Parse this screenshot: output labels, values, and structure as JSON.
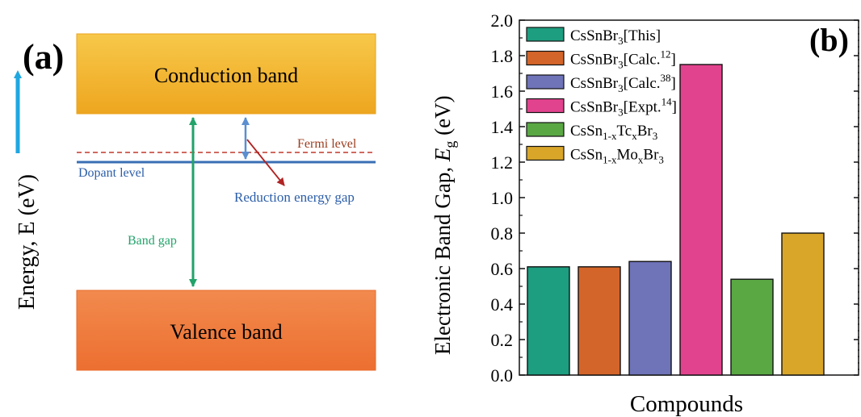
{
  "panel_a": {
    "label": "(a)",
    "conduction_band": "Conduction band",
    "valence_band": "Valence band",
    "fermi_level": "Fermi level",
    "dopant_level": "Dopant level",
    "reduction_gap": "Reduction  energy gap",
    "band_gap": "Band gap",
    "y_axis_label": "Energy, E (eV)",
    "colors": {
      "conduction": "#f2b02a",
      "valence": "#ef7b3f",
      "fermi": "#c0392b",
      "dopant": "#3a6fb5",
      "band_gap_arrow": "#22a36a",
      "reduction_arrow": "#5b8fd0",
      "pointer_arrow": "#b02424",
      "energy_arrow": "#1fa7e0"
    }
  },
  "panel_b": {
    "label": "(b)",
    "chart_data": {
      "type": "bar",
      "categories": [
        "CsSnBr3[This]",
        "CsSnBr3[Calc.12]",
        "CsSnBr3[Calc.38]",
        "CsSnBr3[Expt.14]",
        "CsSn1-xTcxBr3",
        "CsSn1-xMoxBr3"
      ],
      "values": [
        0.61,
        0.61,
        0.64,
        1.75,
        0.54,
        0.8
      ],
      "colors": [
        "#1d9e80",
        "#d4652a",
        "#6f73b8",
        "#e2438e",
        "#5aa844",
        "#d9a62a"
      ],
      "xlabel": "Compounds",
      "ylabel": "Electronic Band Gap, Eg (eV)",
      "ylim": [
        0,
        2.0
      ],
      "yticks": [
        "0.0",
        "0.2",
        "0.4",
        "0.6",
        "0.8",
        "1.0",
        "1.2",
        "1.4",
        "1.6",
        "1.8",
        "2.0"
      ],
      "legend_position": "top-left",
      "legend": [
        {
          "base": "CsSnBr",
          "sub": "3",
          "rest": "[This]"
        },
        {
          "base": "CsSnBr",
          "sub": "3",
          "rest": "[Calc.",
          "sup": "12",
          "end": "]"
        },
        {
          "base": "CsSnBr",
          "sub": "3",
          "rest": "[Calc.",
          "sup": "38",
          "end": "]"
        },
        {
          "base": "CsSnBr",
          "sub": "3",
          "rest": "[Expt.",
          "sup": "14",
          "end": "]"
        },
        {
          "base": "CsSn",
          "sub": "1-x",
          "rest": "Tc",
          "sub2": "x",
          "rest2": "Br",
          "sub3": "3"
        },
        {
          "base": "CsSn",
          "sub": "1-x",
          "rest": "Mo",
          "sub2": "x",
          "rest2": "Br",
          "sub3": "3"
        }
      ]
    }
  }
}
